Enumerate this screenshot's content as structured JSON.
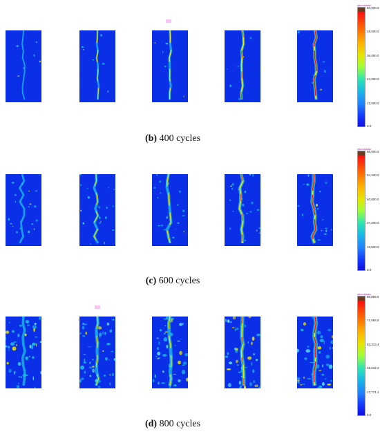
{
  "colorbar_unit": "microstrain",
  "panels": [
    {
      "caption_label": "(b)",
      "caption_text": " 400 cycles",
      "colorbar_ticks": [
        "60,000.0",
        "48,000.0",
        "36,000.0",
        "24,000.0",
        "12,000.0",
        "0.0"
      ]
    },
    {
      "caption_label": "(c)",
      "caption_text": " 600 cycles",
      "colorbar_ticks": [
        "68,000.0",
        "54,400.0",
        "40,800.0",
        "27,200.0",
        "13,600.0",
        "0.0"
      ]
    },
    {
      "caption_label": "(d)",
      "caption_text": " 800 cycles",
      "colorbar_ticks": [
        "88,855.6",
        "71,084.5",
        "53,313.4",
        "35,542.2",
        "17,771.1",
        "0.0"
      ]
    }
  ],
  "colors": {
    "background_field": "#0a2fe6",
    "crack_low": "#19b9e6",
    "crack_mid": "#e6e600",
    "crack_high": "#ff1010"
  }
}
